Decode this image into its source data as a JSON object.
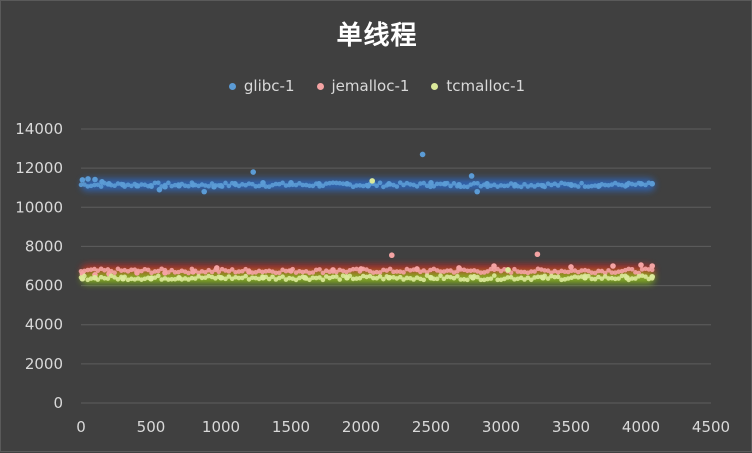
{
  "chart_data": {
    "type": "scatter",
    "title": "单线程",
    "xlabel": "",
    "ylabel": "",
    "xlim": [
      0,
      4500
    ],
    "ylim": [
      0,
      14000
    ],
    "x_ticks": [
      "0",
      "500",
      "1000",
      "1500",
      "2000",
      "2500",
      "3000",
      "3500",
      "4000",
      "4500"
    ],
    "y_ticks": [
      "0",
      "2000",
      "4000",
      "6000",
      "8000",
      "10000",
      "12000",
      "14000"
    ],
    "grid": "horizontal",
    "legend_position": "top",
    "series": [
      {
        "name": "glibc-1",
        "color": "#5b9bd5",
        "glow": "#2a6fd6",
        "base": 11150,
        "points": [
          [
            10,
            11400
          ],
          [
            50,
            11450
          ],
          [
            100,
            11420
          ],
          [
            150,
            11300
          ],
          [
            200,
            11200
          ],
          [
            300,
            11150
          ],
          [
            400,
            11100
          ],
          [
            500,
            11100
          ],
          [
            560,
            10900
          ],
          [
            600,
            11050
          ],
          [
            700,
            11100
          ],
          [
            800,
            11150
          ],
          [
            880,
            10800
          ],
          [
            950,
            11050
          ],
          [
            1000,
            11100
          ],
          [
            1100,
            11200
          ],
          [
            1230,
            11800
          ],
          [
            1300,
            11250
          ],
          [
            1500,
            11250
          ],
          [
            1700,
            11200
          ],
          [
            1900,
            11200
          ],
          [
            2050,
            11100
          ],
          [
            2200,
            11200
          ],
          [
            2440,
            12700
          ],
          [
            2500,
            11250
          ],
          [
            2600,
            11200
          ],
          [
            2700,
            11150
          ],
          [
            2790,
            11600
          ],
          [
            2830,
            10800
          ],
          [
            2900,
            11200
          ],
          [
            3100,
            11150
          ],
          [
            3300,
            11100
          ],
          [
            3500,
            11150
          ],
          [
            3700,
            11100
          ],
          [
            3900,
            11150
          ],
          [
            4000,
            11200
          ],
          [
            4080,
            11200
          ]
        ]
      },
      {
        "name": "jemalloc-1",
        "color": "#f4a3a3",
        "glow": "#d62828",
        "base": 6750,
        "points": [
          [
            10,
            6600
          ],
          [
            100,
            6550
          ],
          [
            200,
            6600
          ],
          [
            400,
            6650
          ],
          [
            600,
            6650
          ],
          [
            800,
            6700
          ],
          [
            970,
            6900
          ],
          [
            1200,
            6700
          ],
          [
            1500,
            6750
          ],
          [
            1800,
            6800
          ],
          [
            2000,
            6850
          ],
          [
            2220,
            7550
          ],
          [
            2400,
            6850
          ],
          [
            2700,
            6900
          ],
          [
            2950,
            7000
          ],
          [
            3050,
            6800
          ],
          [
            3260,
            7600
          ],
          [
            3500,
            6950
          ],
          [
            3800,
            7000
          ],
          [
            4000,
            7050
          ],
          [
            4080,
            7000
          ]
        ]
      },
      {
        "name": "tcmalloc-1",
        "color": "#dbe99a",
        "glow": "#8fcf1f",
        "base": 6400,
        "points": [
          [
            10,
            6350
          ],
          [
            100,
            6400
          ],
          [
            300,
            6350
          ],
          [
            500,
            6350
          ],
          [
            700,
            6400
          ],
          [
            1000,
            6400
          ],
          [
            1300,
            6400
          ],
          [
            1600,
            6400
          ],
          [
            1900,
            6400
          ],
          [
            2080,
            11350
          ],
          [
            2200,
            6400
          ],
          [
            2500,
            6400
          ],
          [
            2800,
            6400
          ],
          [
            3050,
            6800
          ],
          [
            3300,
            6400
          ],
          [
            3600,
            6400
          ],
          [
            3900,
            6400
          ],
          [
            4080,
            6450
          ]
        ]
      }
    ]
  }
}
